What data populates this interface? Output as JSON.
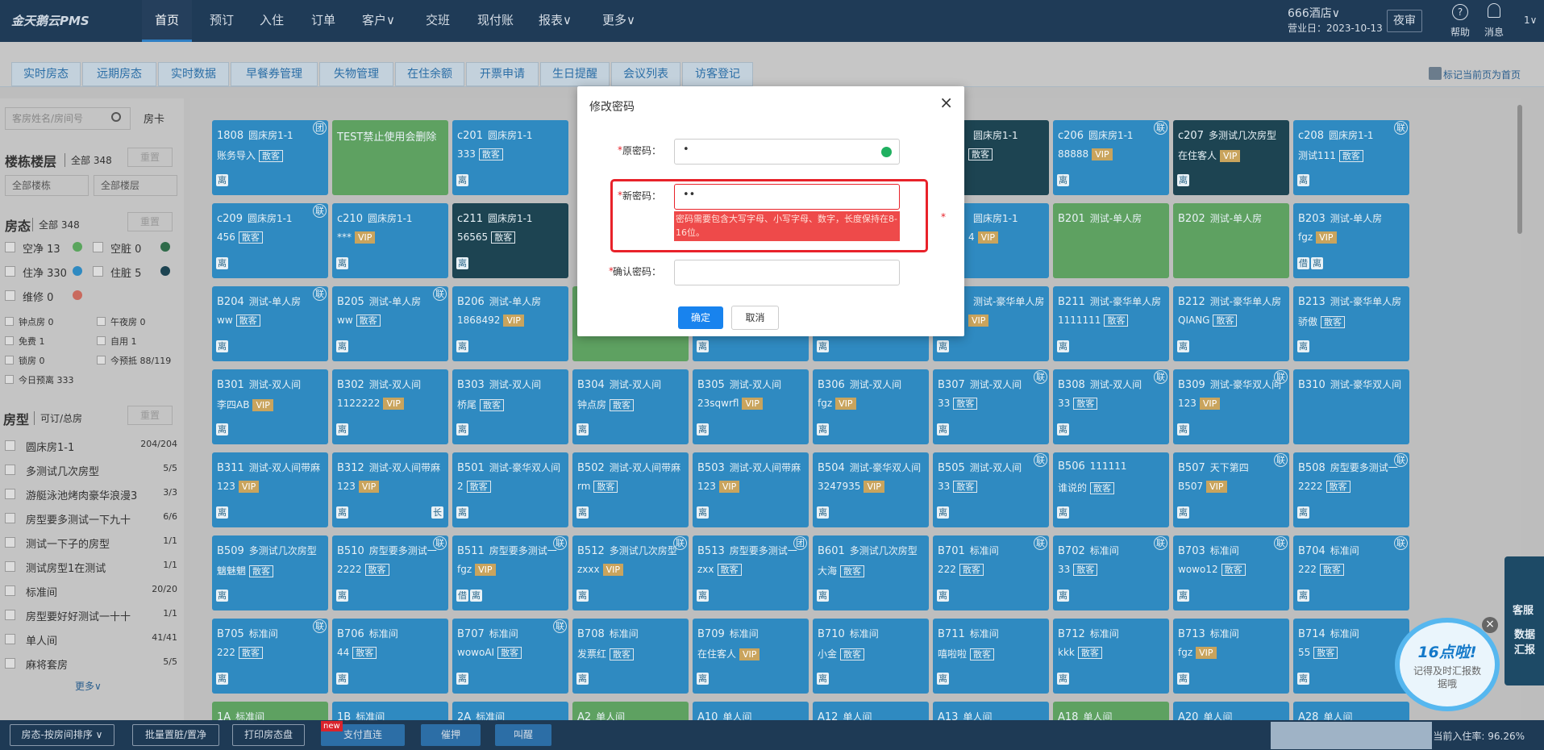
{
  "nav": {
    "logo": "金天鹅云PMS",
    "items": [
      "首页",
      "预订",
      "入住",
      "订单",
      "客户∨",
      "交班",
      "现付账",
      "报表∨",
      "更多∨"
    ],
    "hotel": "666酒店∨",
    "business_day": "营业日：2023-10-13",
    "night_audit": "夜审",
    "help": "帮助",
    "messages": "消息",
    "user": "1∨"
  },
  "subtabs": {
    "items": [
      "实时房态",
      "远期房态",
      "实时数据",
      "早餐券管理",
      "失物管理",
      "在住余额",
      "开票申请",
      "生日提醒",
      "会议列表",
      "访客登记"
    ],
    "pin": "标记当前页为首页"
  },
  "sidebar": {
    "search_placeholder": "客房姓名/房间号",
    "card_button": "房卡",
    "building": {
      "title": "楼栋楼层",
      "count": "全部 348",
      "reset": "重置",
      "selects": [
        "全部楼栋",
        "全部楼层"
      ]
    },
    "status": {
      "title": "房态",
      "count": "全部 348",
      "reset": "重置",
      "items": [
        {
          "label": "空净 13",
          "color": "#5aa55d"
        },
        {
          "label": "空脏 0",
          "color": "#2f6b4a"
        },
        {
          "label": "住净 330",
          "color": "#2f8ac1"
        },
        {
          "label": "住脏 5",
          "color": "#1d4452"
        },
        {
          "label": "维修 0",
          "color": "#c96a5e"
        }
      ]
    },
    "flags": [
      "钟点房 0",
      "午夜房 0",
      "免费 1",
      "自用 1",
      "锁房 0",
      "今预抵 88/119",
      "今日预离 333"
    ],
    "room_types": {
      "title": "房型",
      "subtitle": "可订/总房",
      "reset": "重置",
      "items": [
        {
          "name": "圆床房1-1",
          "count": "204/204"
        },
        {
          "name": "多测试几次房型",
          "count": "5/5"
        },
        {
          "name": "游艇泳池烤肉豪华浪漫3",
          "count": "3/3"
        },
        {
          "name": "房型要多测试一下九十",
          "count": "6/6"
        },
        {
          "name": "测试一下子的房型",
          "count": "1/1"
        },
        {
          "name": "测试房型1在测试",
          "count": "1/1"
        },
        {
          "name": "标准间",
          "count": "20/20"
        },
        {
          "name": "房型要好好测试一十十",
          "count": "1/1"
        },
        {
          "name": "单人间",
          "count": "41/41"
        },
        {
          "name": "麻将套房",
          "count": "5/5"
        }
      ],
      "more": "更多∨"
    }
  },
  "grid": {
    "rows": [
      [
        {
          "room": "1808",
          "type": "圆床房1-1",
          "guest": "账务导入",
          "tag": "散客",
          "badge": "团",
          "icons": [
            "离"
          ],
          "color": "#2f8ac1"
        },
        {
          "room": "TEST禁止使用会删除",
          "color": "#5ea161"
        },
        {
          "room": "c201",
          "type": "圆床房1-1",
          "guest": "333",
          "tag": "散客",
          "icons": [
            "离"
          ],
          "color": "#2f8ac1"
        },
        null,
        null,
        null,
        {
          "type": "圆床房1-1",
          "tag": "散客",
          "color": "#1d4452"
        },
        {
          "room": "c206",
          "type": "圆床房1-1",
          "guest": "88888",
          "tag": "VIP",
          "badge": "联",
          "icons": [
            "离"
          ],
          "color": "#2f8ac1"
        },
        {
          "room": "c207",
          "type": "多测试几次房型",
          "guest": "在住客人",
          "tag": "VIP",
          "icons": [
            "离"
          ],
          "color": "#1d4452"
        },
        {
          "room": "c208",
          "type": "圆床房1-1",
          "guest": "测试111",
          "tag": "散客",
          "badge": "联",
          "icons": [
            "离"
          ],
          "color": "#2f8ac1"
        }
      ],
      [
        {
          "room": "c209",
          "type": "圆床房1-1",
          "guest": "456",
          "tag": "散客",
          "badge": "联",
          "icons": [
            "离"
          ],
          "color": "#2f8ac1"
        },
        {
          "room": "c210",
          "type": "圆床房1-1",
          "guest": "***",
          "tag": "VIP",
          "icons": [
            "离"
          ],
          "color": "#2f8ac1"
        },
        {
          "room": "c211",
          "type": "圆床房1-1",
          "guest": "56565",
          "tag": "散客",
          "icons": [
            "离"
          ],
          "color": "#1d4452"
        },
        null,
        null,
        null,
        {
          "type": "圆床房1-1",
          "guest": "4",
          "tag": "VIP",
          "icons": [
            "离"
          ],
          "color": "#2f8ac1"
        },
        {
          "room": "B201",
          "type": "测试-单人房",
          "color": "#5ea161"
        },
        {
          "room": "B202",
          "type": "测试-单人房",
          "color": "#5ea161"
        },
        {
          "room": "B203",
          "type": "测试-单人房",
          "guest": "fgz",
          "tag": "VIP",
          "icons": [
            "借",
            "离"
          ],
          "color": "#2f8ac1"
        }
      ],
      [
        {
          "room": "B204",
          "type": "测试-单人房",
          "guest": "ww",
          "tag": "散客",
          "badge": "联",
          "icons": [
            "离"
          ],
          "color": "#2f8ac1"
        },
        {
          "room": "B205",
          "type": "测试-单人房",
          "guest": "ww",
          "tag": "散客",
          "badge": "联",
          "icons": [
            "离"
          ],
          "color": "#2f8ac1"
        },
        {
          "room": "B206",
          "type": "测试-单人房",
          "guest": "1868492",
          "tag": "VIP",
          "icons": [
            "离"
          ],
          "color": "#2f8ac1"
        },
        {
          "color": "#5ea161"
        },
        {
          "icons": [
            "离"
          ],
          "color": "#2f8ac1"
        },
        {
          "icons": [
            "离"
          ],
          "color": "#2f8ac1"
        },
        {
          "type": "测试-豪华单人房",
          "tag": "VIP",
          "icons": [
            "离"
          ],
          "color": "#2f8ac1"
        },
        {
          "room": "B211",
          "type": "测试-豪华单人房",
          "guest": "1111111",
          "tag": "散客",
          "icons": [
            "离"
          ],
          "color": "#2f8ac1"
        },
        {
          "room": "B212",
          "type": "测试-豪华单人房",
          "guest": "QIANG",
          "tag": "散客",
          "icons": [
            "离"
          ],
          "color": "#2f8ac1"
        },
        {
          "room": "B213",
          "type": "测试-豪华单人房",
          "guest": "骄傲",
          "tag": "散客",
          "icons": [
            "离"
          ],
          "color": "#2f8ac1"
        }
      ],
      [
        {
          "room": "B301",
          "type": "测试-双人间",
          "guest": "李四AB",
          "tag": "VIP",
          "icons": [
            "离"
          ],
          "color": "#2f8ac1"
        },
        {
          "room": "B302",
          "type": "测试-双人间",
          "guest": "1122222",
          "tag": "VIP",
          "icons": [
            "离"
          ],
          "color": "#2f8ac1"
        },
        {
          "room": "B303",
          "type": "测试-双人间",
          "guest": "桥尾",
          "tag": "散客",
          "icons": [
            "离"
          ],
          "color": "#2f8ac1"
        },
        {
          "room": "B304",
          "type": "测试-双人间",
          "guest": "钟点房",
          "tag": "散客",
          "icons": [
            "离"
          ],
          "color": "#2f8ac1"
        },
        {
          "room": "B305",
          "type": "测试-双人间",
          "guest": "23sqwrfl",
          "tag": "VIP",
          "icons": [
            "离"
          ],
          "color": "#2f8ac1"
        },
        {
          "room": "B306",
          "type": "测试-双人间",
          "guest": "fgz",
          "tag": "VIP",
          "icons": [
            "离"
          ],
          "color": "#2f8ac1"
        },
        {
          "room": "B307",
          "type": "测试-双人间",
          "guest": "33",
          "tag": "散客",
          "badge": "联",
          "icons": [
            "离"
          ],
          "color": "#2f8ac1"
        },
        {
          "room": "B308",
          "type": "测试-双人间",
          "guest": "33",
          "tag": "散客",
          "badge": "联",
          "icons": [
            "离"
          ],
          "color": "#2f8ac1"
        },
        {
          "room": "B309",
          "type": "测试-豪华双人间",
          "guest": "123",
          "tag": "VIP",
          "badge": "联",
          "icons": [
            "离"
          ],
          "color": "#2f8ac1"
        },
        {
          "room": "B310",
          "type": "测试-豪华双人间",
          "color": "#2f8ac1"
        }
      ],
      [
        {
          "room": "B311",
          "type": "测试-双人间带麻",
          "guest": "123",
          "tag": "VIP",
          "icons": [
            "离"
          ],
          "color": "#2f8ac1"
        },
        {
          "room": "B312",
          "type": "测试-双人间带麻",
          "guest": "123",
          "tag": "VIP",
          "icons": [
            "离",
            "长"
          ],
          "color": "#2f8ac1"
        },
        {
          "room": "B501",
          "type": "测试-豪华双人间",
          "guest": "2",
          "tag": "散客",
          "icons": [
            "离"
          ],
          "color": "#2f8ac1"
        },
        {
          "room": "B502",
          "type": "测试-双人间带麻",
          "guest": "rm",
          "tag": "散客",
          "icons": [
            "离"
          ],
          "color": "#2f8ac1"
        },
        {
          "room": "B503",
          "type": "测试-双人间带麻",
          "guest": "123",
          "tag": "VIP",
          "icons": [
            "离"
          ],
          "color": "#2f8ac1"
        },
        {
          "room": "B504",
          "type": "测试-豪华双人间",
          "guest": "3247935",
          "tag": "VIP",
          "icons": [
            "离"
          ],
          "color": "#2f8ac1"
        },
        {
          "room": "B505",
          "type": "测试-双人间",
          "guest": "33",
          "tag": "散客",
          "badge": "联",
          "icons": [
            "离"
          ],
          "color": "#2f8ac1"
        },
        {
          "room": "B506",
          "type": "111111",
          "guest": "谁说的",
          "tag": "散客",
          "icons": [
            "离"
          ],
          "color": "#2f8ac1"
        },
        {
          "room": "B507",
          "type": "天下第四",
          "guest": "B507",
          "tag": "VIP",
          "badge": "联",
          "icons": [
            "离"
          ],
          "color": "#2f8ac1"
        },
        {
          "room": "B508",
          "type": "房型要多测试一",
          "guest": "2222",
          "tag": "散客",
          "badge": "联",
          "icons": [
            "离"
          ],
          "color": "#2f8ac1"
        }
      ],
      [
        {
          "room": "B509",
          "type": "多测试几次房型",
          "guest": "魑魅魍",
          "tag": "散客",
          "icons": [
            "离"
          ],
          "color": "#2f8ac1"
        },
        {
          "room": "B510",
          "type": "房型要多测试一",
          "guest": "2222",
          "tag": "散客",
          "badge": "联",
          "icons": [
            "离"
          ],
          "color": "#2f8ac1"
        },
        {
          "room": "B511",
          "type": "房型要多测试一",
          "guest": "fgz",
          "tag": "VIP",
          "badge": "联",
          "icons": [
            "借",
            "离"
          ],
          "color": "#2f8ac1"
        },
        {
          "room": "B512",
          "type": "多测试几次房型",
          "guest": "zxxx",
          "tag": "VIP",
          "badge": "联",
          "icons": [
            "离"
          ],
          "color": "#2f8ac1"
        },
        {
          "room": "B513",
          "type": "房型要多测试一",
          "guest": "zxx",
          "tag": "散客",
          "badge": "团",
          "icons": [
            "离"
          ],
          "color": "#2f8ac1"
        },
        {
          "room": "B601",
          "type": "多测试几次房型",
          "guest": "大海",
          "tag": "散客",
          "icons": [
            "离"
          ],
          "color": "#2f8ac1"
        },
        {
          "room": "B701",
          "type": "标准间",
          "guest": "222",
          "tag": "散客",
          "badge": "联",
          "icons": [
            "离"
          ],
          "color": "#2f8ac1"
        },
        {
          "room": "B702",
          "type": "标准间",
          "guest": "33",
          "tag": "散客",
          "badge": "联",
          "icons": [
            "离"
          ],
          "color": "#2f8ac1"
        },
        {
          "room": "B703",
          "type": "标准间",
          "guest": "wowo12",
          "tag": "散客",
          "badge": "联",
          "icons": [
            "离"
          ],
          "color": "#2f8ac1"
        },
        {
          "room": "B704",
          "type": "标准间",
          "guest": "222",
          "tag": "散客",
          "badge": "联",
          "icons": [
            "离"
          ],
          "color": "#2f8ac1"
        }
      ],
      [
        {
          "room": "B705",
          "type": "标准间",
          "guest": "222",
          "tag": "散客",
          "badge": "联",
          "icons": [
            "离"
          ],
          "color": "#2f8ac1"
        },
        {
          "room": "B706",
          "type": "标准间",
          "guest": "44",
          "tag": "散客",
          "icons": [
            "离"
          ],
          "color": "#2f8ac1"
        },
        {
          "room": "B707",
          "type": "标准间",
          "guest": "wowoAI",
          "tag": "散客",
          "badge": "联",
          "icons": [
            "离"
          ],
          "color": "#2f8ac1"
        },
        {
          "room": "B708",
          "type": "标准间",
          "guest": "发票红",
          "tag": "散客",
          "icons": [
            "离"
          ],
          "color": "#2f8ac1"
        },
        {
          "room": "B709",
          "type": "标准间",
          "guest": "在住客人",
          "tag": "VIP",
          "icons": [
            "离"
          ],
          "color": "#2f8ac1"
        },
        {
          "room": "B710",
          "type": "标准间",
          "guest": "小金",
          "tag": "散客",
          "icons": [
            "离"
          ],
          "color": "#2f8ac1"
        },
        {
          "room": "B711",
          "type": "标准间",
          "guest": "嘻啦啦",
          "tag": "散客",
          "icons": [
            "离"
          ],
          "color": "#2f8ac1"
        },
        {
          "room": "B712",
          "type": "标准间",
          "guest": "kkk",
          "tag": "散客",
          "icons": [
            "离"
          ],
          "color": "#2f8ac1"
        },
        {
          "room": "B713",
          "type": "标准间",
          "guest": "fgz",
          "tag": "VIP",
          "icons": [
            "离"
          ],
          "color": "#2f8ac1"
        },
        {
          "room": "B714",
          "type": "标准间",
          "guest": "55",
          "tag": "散客",
          "icons": [
            "离"
          ],
          "color": "#2f8ac1"
        }
      ],
      [
        {
          "room": "1A",
          "type": "标准间",
          "color": "#5ea161"
        },
        {
          "room": "1B",
          "type": "标准间",
          "color": "#2f8ac1"
        },
        {
          "room": "2A",
          "type": "标准间",
          "color": "#2f8ac1"
        },
        {
          "room": "A2",
          "type": "单人间",
          "color": "#5ea161"
        },
        {
          "room": "A10",
          "type": "单人间",
          "color": "#2f8ac1"
        },
        {
          "room": "A12",
          "type": "单人间",
          "color": "#2f8ac1"
        },
        {
          "room": "A13",
          "type": "单人间",
          "color": "#2f8ac1"
        },
        {
          "room": "A18",
          "type": "单人间",
          "color": "#5ea161"
        },
        {
          "room": "A20",
          "type": "单人间",
          "color": "#2f8ac1"
        },
        {
          "room": "A28",
          "type": "单人间",
          "color": "#2f8ac1"
        }
      ]
    ]
  },
  "modal": {
    "title": "修改密码",
    "close": "×",
    "fields": [
      {
        "label": "原密码：",
        "value": "•"
      },
      {
        "label": "新密码：",
        "value": "••",
        "error": "密码需要包含大写字母、小写字母、数字，长度保持在8-16位。"
      },
      {
        "label": "确认密码："
      }
    ],
    "required": "*",
    "ok": "确定",
    "cancel": "取消"
  },
  "side_float": {
    "service": "客服",
    "report": "数据汇报",
    "bubble_title": "16点啦!",
    "bubble_text": "记得及时汇报数据哦"
  },
  "bottom": {
    "sort": "房态-按房间排序 ∨",
    "batch": "批量置脏/置净",
    "print": "打印房态盘",
    "pay": "支付直连",
    "new": "new",
    "deposit": "催押",
    "wake": "叫醒",
    "occupancy": "当前入住率: 96.26%"
  }
}
